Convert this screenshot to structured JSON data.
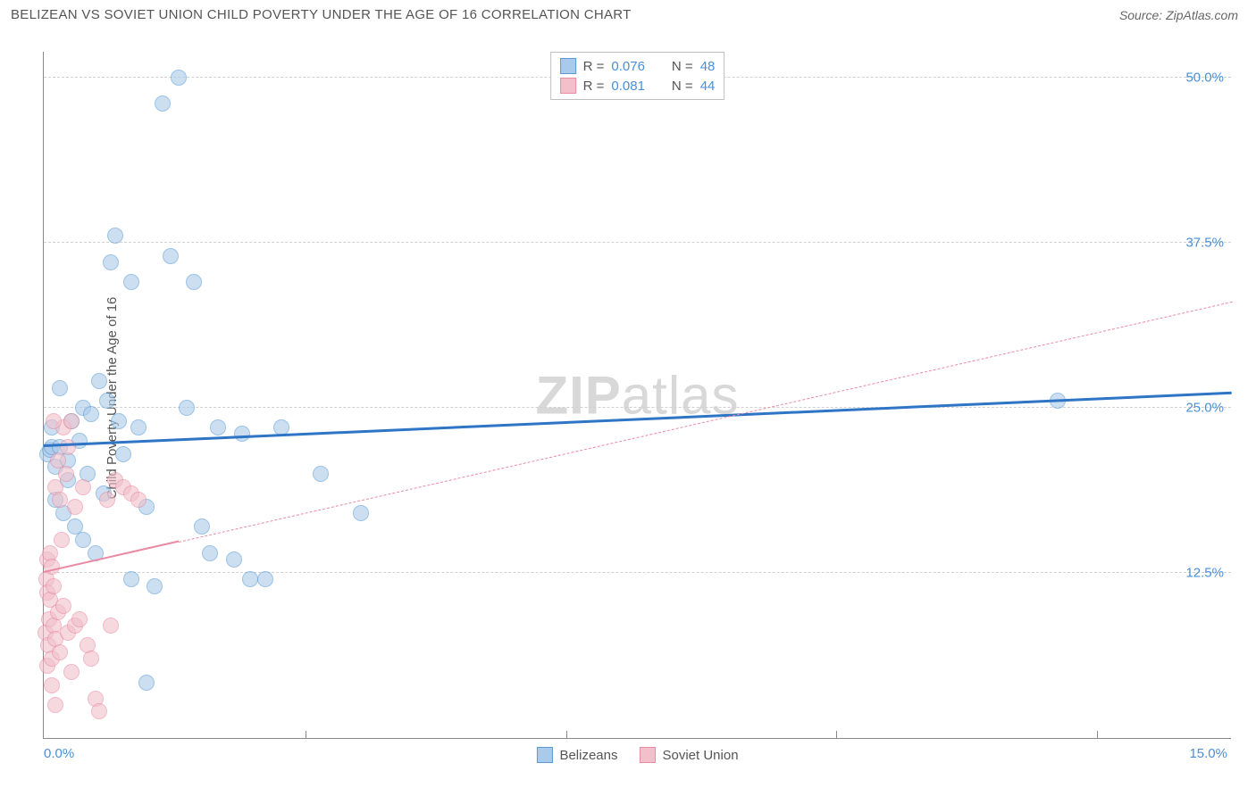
{
  "header": {
    "title": "BELIZEAN VS SOVIET UNION CHILD POVERTY UNDER THE AGE OF 16 CORRELATION CHART",
    "source": "Source: ZipAtlas.com"
  },
  "chart": {
    "type": "scatter",
    "y_axis_label": "Child Poverty Under the Age of 16",
    "watermark_prefix": "ZIP",
    "watermark_suffix": "atlas",
    "xlim": [
      0,
      15
    ],
    "ylim": [
      0,
      52
    ],
    "y_ticks": [
      {
        "value": 50.0,
        "label": "50.0%"
      },
      {
        "value": 37.5,
        "label": "37.5%"
      },
      {
        "value": 25.0,
        "label": "25.0%"
      },
      {
        "value": 12.5,
        "label": "12.5%"
      }
    ],
    "x_ticks": [
      {
        "value": 0.0,
        "label": "0.0%",
        "align": "left"
      },
      {
        "value": 3.3,
        "label": ""
      },
      {
        "value": 6.6,
        "label": ""
      },
      {
        "value": 10.0,
        "label": ""
      },
      {
        "value": 13.3,
        "label": ""
      },
      {
        "value": 15.0,
        "label": "15.0%",
        "align": "right"
      }
    ],
    "series": [
      {
        "name": "Belizeans",
        "fill_color": "#a9cbe9",
        "stroke_color": "#5b9bd5",
        "fill_opacity": 0.6,
        "marker_size": 18,
        "trend": {
          "x1": 0,
          "y1": 22.0,
          "x2": 15,
          "y2": 26.0,
          "color": "#2e75c6",
          "width": 3,
          "dash": false
        },
        "trend_solid_extent": 15,
        "stats": {
          "R": "0.076",
          "N": "48"
        },
        "points": [
          [
            0.05,
            21.5
          ],
          [
            0.08,
            21.8
          ],
          [
            0.1,
            22.0
          ],
          [
            0.1,
            23.5
          ],
          [
            0.15,
            18.0
          ],
          [
            0.15,
            20.5
          ],
          [
            0.2,
            22.0
          ],
          [
            0.2,
            26.5
          ],
          [
            0.25,
            17.0
          ],
          [
            0.3,
            19.5
          ],
          [
            0.3,
            21.0
          ],
          [
            0.35,
            24.0
          ],
          [
            0.4,
            16.0
          ],
          [
            0.45,
            22.5
          ],
          [
            0.5,
            25.0
          ],
          [
            0.5,
            15.0
          ],
          [
            0.55,
            20.0
          ],
          [
            0.6,
            24.5
          ],
          [
            0.65,
            14.0
          ],
          [
            0.7,
            27.0
          ],
          [
            0.75,
            18.5
          ],
          [
            0.8,
            25.5
          ],
          [
            0.85,
            36.0
          ],
          [
            0.9,
            38.0
          ],
          [
            0.95,
            24.0
          ],
          [
            1.0,
            21.5
          ],
          [
            1.1,
            34.5
          ],
          [
            1.1,
            12.0
          ],
          [
            1.2,
            23.5
          ],
          [
            1.3,
            17.5
          ],
          [
            1.4,
            11.5
          ],
          [
            1.5,
            48.0
          ],
          [
            1.6,
            36.5
          ],
          [
            1.7,
            50.0
          ],
          [
            1.8,
            25.0
          ],
          [
            1.9,
            34.5
          ],
          [
            2.0,
            16.0
          ],
          [
            2.1,
            14.0
          ],
          [
            2.2,
            23.5
          ],
          [
            2.4,
            13.5
          ],
          [
            2.5,
            23.0
          ],
          [
            2.6,
            12.0
          ],
          [
            2.8,
            12.0
          ],
          [
            3.0,
            23.5
          ],
          [
            3.5,
            20.0
          ],
          [
            4.0,
            17.0
          ],
          [
            12.8,
            25.5
          ],
          [
            1.3,
            4.2
          ]
        ]
      },
      {
        "name": "Soviet Union",
        "fill_color": "#f1c0cb",
        "stroke_color": "#e88ba3",
        "fill_opacity": 0.6,
        "marker_size": 18,
        "trend": {
          "x1": 0,
          "y1": 12.5,
          "x2": 15,
          "y2": 33.0,
          "color": "#e88ba3",
          "width": 2,
          "dash": true
        },
        "trend_solid_extent": 1.7,
        "stats": {
          "R": "0.081",
          "N": "44"
        },
        "points": [
          [
            0.02,
            8.0
          ],
          [
            0.03,
            12.0
          ],
          [
            0.04,
            13.5
          ],
          [
            0.05,
            11.0
          ],
          [
            0.05,
            5.5
          ],
          [
            0.06,
            7.0
          ],
          [
            0.07,
            9.0
          ],
          [
            0.08,
            14.0
          ],
          [
            0.08,
            10.5
          ],
          [
            0.1,
            6.0
          ],
          [
            0.1,
            13.0
          ],
          [
            0.1,
            4.0
          ],
          [
            0.12,
            8.5
          ],
          [
            0.12,
            11.5
          ],
          [
            0.15,
            19.0
          ],
          [
            0.15,
            7.5
          ],
          [
            0.15,
            2.5
          ],
          [
            0.18,
            21.0
          ],
          [
            0.18,
            9.5
          ],
          [
            0.2,
            18.0
          ],
          [
            0.2,
            6.5
          ],
          [
            0.22,
            15.0
          ],
          [
            0.25,
            23.5
          ],
          [
            0.25,
            10.0
          ],
          [
            0.28,
            20.0
          ],
          [
            0.3,
            8.0
          ],
          [
            0.3,
            22.0
          ],
          [
            0.35,
            24.0
          ],
          [
            0.35,
            5.0
          ],
          [
            0.4,
            17.5
          ],
          [
            0.4,
            8.5
          ],
          [
            0.45,
            9.0
          ],
          [
            0.5,
            19.0
          ],
          [
            0.55,
            7.0
          ],
          [
            0.6,
            6.0
          ],
          [
            0.65,
            3.0
          ],
          [
            0.7,
            2.0
          ],
          [
            0.8,
            18.0
          ],
          [
            0.85,
            8.5
          ],
          [
            0.9,
            19.5
          ],
          [
            1.0,
            19.0
          ],
          [
            1.1,
            18.5
          ],
          [
            1.2,
            18.0
          ],
          [
            0.12,
            24.0
          ]
        ]
      }
    ],
    "legend_labels": {
      "R": "R =",
      "N": "N ="
    }
  }
}
